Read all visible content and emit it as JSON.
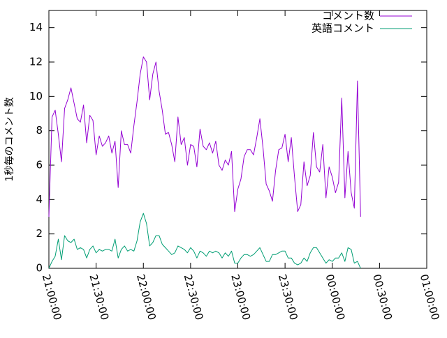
{
  "chart_data": {
    "type": "line",
    "title": "",
    "xlabel": "",
    "ylabel": "1秒毎のコメント数",
    "ylim": [
      0,
      15
    ],
    "xlim": [
      "21:00:00",
      "01:00:00"
    ],
    "yticks": [
      0,
      2,
      4,
      6,
      8,
      10,
      12,
      14
    ],
    "xticks": [
      "21:00:00",
      "21:30:00",
      "22:00:00",
      "22:30:00",
      "23:00:00",
      "23:30:00",
      "00:00:00",
      "00:30:00",
      "01:00:00"
    ],
    "x_step_minutes": 2,
    "grid": false,
    "legend_position": "top-right",
    "series": [
      {
        "name": "コメント数",
        "color": "#9400d3",
        "values": [
          3.0,
          8.8,
          9.2,
          7.8,
          6.2,
          9.3,
          9.8,
          10.5,
          9.6,
          8.7,
          8.5,
          9.5,
          7.3,
          8.9,
          8.6,
          6.6,
          7.7,
          7.1,
          7.3,
          7.7,
          6.7,
          7.4,
          4.7,
          8.0,
          7.2,
          7.2,
          6.7,
          8.3,
          9.7,
          11.3,
          12.3,
          12.0,
          9.8,
          11.3,
          12.0,
          10.3,
          9.2,
          7.8,
          7.9,
          7.2,
          6.2,
          8.8,
          7.2,
          7.6,
          6.0,
          7.2,
          7.1,
          5.9,
          8.1,
          7.1,
          6.9,
          7.3,
          6.7,
          7.4,
          6.0,
          5.7,
          6.3,
          6.0,
          6.8,
          3.3,
          4.6,
          5.2,
          6.5,
          6.9,
          6.9,
          6.6,
          7.6,
          8.7,
          7.0,
          4.9,
          4.5,
          3.9,
          5.7,
          6.9,
          7.0,
          7.8,
          6.2,
          7.6,
          5.3,
          3.3,
          3.7,
          6.2,
          4.8,
          5.4,
          7.9,
          5.9,
          5.6,
          7.2,
          4.1,
          5.9,
          5.3,
          4.4,
          5.0,
          9.9,
          4.1,
          6.8,
          4.4,
          3.5,
          10.9,
          3.0
        ]
      },
      {
        "name": "英語コメント",
        "color": "#009e73",
        "values": [
          0.0,
          0.4,
          0.7,
          1.7,
          0.5,
          1.9,
          1.6,
          1.5,
          1.7,
          1.1,
          1.2,
          1.1,
          0.6,
          1.1,
          1.3,
          0.9,
          1.1,
          1.0,
          1.1,
          1.1,
          1.0,
          1.7,
          0.6,
          1.1,
          1.3,
          1.0,
          1.1,
          1.0,
          1.6,
          2.7,
          3.2,
          2.6,
          1.3,
          1.5,
          1.9,
          1.9,
          1.4,
          1.2,
          1.0,
          0.8,
          0.9,
          1.3,
          1.2,
          1.1,
          0.9,
          1.2,
          1.0,
          0.6,
          1.0,
          0.9,
          0.7,
          1.0,
          0.9,
          1.0,
          0.9,
          0.6,
          0.9,
          0.7,
          1.0,
          0.3,
          0.3,
          0.6,
          0.8,
          0.8,
          0.7,
          0.8,
          1.0,
          1.2,
          0.8,
          0.4,
          0.4,
          0.8,
          0.8,
          0.9,
          1.0,
          1.0,
          0.6,
          0.6,
          0.3,
          0.2,
          0.3,
          0.6,
          0.4,
          0.9,
          1.2,
          1.2,
          0.9,
          0.6,
          0.3,
          0.5,
          0.4,
          0.6,
          0.6,
          0.9,
          0.4,
          1.2,
          1.1,
          0.3,
          0.4,
          0.0
        ]
      }
    ]
  }
}
